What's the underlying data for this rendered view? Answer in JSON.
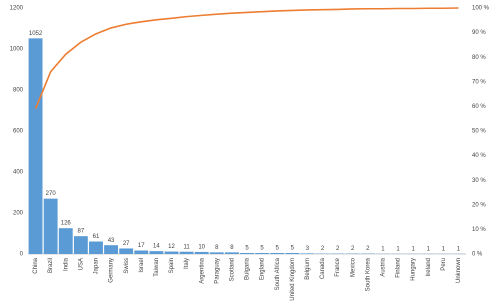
{
  "chart_data": {
    "type": "pareto",
    "categories": [
      "China",
      "Brazil",
      "India",
      "USA",
      "Japan",
      "Germany",
      "Swiss",
      "Israel",
      "Taiwan",
      "Spain",
      "Italy",
      "Argentina",
      "Paraguay",
      "Scotland",
      "Bulgaria",
      "England",
      "South Africa",
      "United Kingdom",
      "Belgium",
      "Canada",
      "France",
      "Mexico",
      "South Korea",
      "Austria",
      "Finland",
      "Hungary",
      "Ireland",
      "Peru",
      "Unknown"
    ],
    "series": [
      {
        "color": "#5b9bd5",
        "values": [
          1052,
          270,
          126,
          87,
          61,
          43,
          27,
          17,
          14,
          12,
          11,
          10,
          8,
          8,
          5,
          5,
          5,
          5,
          3,
          2,
          2,
          2,
          2,
          1,
          1,
          1,
          1,
          1,
          1
        ]
      },
      {
        "color": "#ed7d31",
        "axis": "y2",
        "values": [
          59.0,
          74.1,
          81.2,
          86.1,
          89.5,
          91.9,
          93.4,
          94.4,
          95.2,
          95.8,
          96.5,
          97.0,
          97.5,
          97.9,
          98.2,
          98.5,
          98.8,
          99.0,
          99.2,
          99.3,
          99.4,
          99.6,
          99.7,
          99.7,
          99.8,
          99.8,
          99.9,
          99.9,
          100
        ]
      }
    ],
    "ylim": [
      0,
      1200
    ],
    "yticks": [
      0,
      200,
      400,
      600,
      800,
      1000,
      1200
    ],
    "y2lim": [
      0,
      100
    ],
    "y2ticks": [
      {
        "value": 0,
        "label": "0 %"
      },
      {
        "value": 10,
        "label": "10 %"
      },
      {
        "value": 20,
        "label": "20 %"
      },
      {
        "value": 30,
        "label": "30 %"
      },
      {
        "value": 40,
        "label": "40 %"
      },
      {
        "value": 50,
        "label": "50 %"
      },
      {
        "value": 60,
        "label": "60 %"
      },
      {
        "value": 70,
        "label": "70 %"
      },
      {
        "value": 80,
        "label": "80 %"
      },
      {
        "value": 90,
        "label": "90 %"
      },
      {
        "value": 100,
        "label": "100 %"
      }
    ],
    "grid": false
  }
}
